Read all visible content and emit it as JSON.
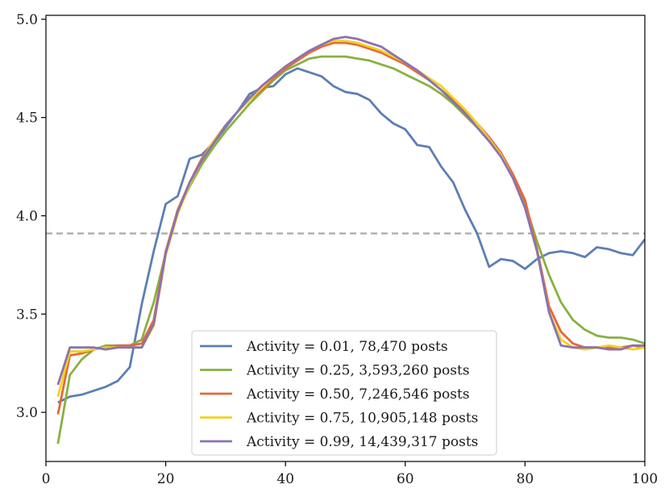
{
  "chart_data": {
    "type": "line",
    "title": "",
    "xlabel": "",
    "ylabel": "",
    "xlim": [
      0,
      100
    ],
    "ylim": [
      2.75,
      5.02
    ],
    "xticks": [
      0,
      20,
      40,
      60,
      80,
      100
    ],
    "yticks": [
      3.0,
      3.5,
      4.0,
      4.5,
      5.0
    ],
    "xtick_labels": [
      "0",
      "20",
      "40",
      "60",
      "80",
      "100"
    ],
    "ytick_labels": [
      "3.0",
      "3.5",
      "4.0",
      "4.5",
      "5.0"
    ],
    "grid": false,
    "legend_position": "bottom-center",
    "reference_line": {
      "y": 3.91,
      "style": "dashed",
      "color": "#aaaaaa"
    },
    "x": [
      2,
      4,
      6,
      8,
      10,
      12,
      14,
      16,
      18,
      20,
      22,
      24,
      26,
      28,
      30,
      32,
      34,
      36,
      38,
      40,
      42,
      44,
      46,
      48,
      50,
      52,
      54,
      56,
      58,
      60,
      62,
      64,
      66,
      68,
      70,
      72,
      74,
      76,
      78,
      80,
      82,
      84,
      86,
      88,
      90,
      92,
      94,
      96,
      98,
      100
    ],
    "series": [
      {
        "name": "Activity = 0.01, 78,470 posts",
        "color": "#5b7fb5",
        "values": [
          3.05,
          3.08,
          3.09,
          3.11,
          3.13,
          3.16,
          3.23,
          3.55,
          3.82,
          4.06,
          4.1,
          4.29,
          4.31,
          4.37,
          4.45,
          4.53,
          4.62,
          4.65,
          4.66,
          4.72,
          4.75,
          4.73,
          4.71,
          4.66,
          4.63,
          4.62,
          4.59,
          4.52,
          4.47,
          4.44,
          4.36,
          4.35,
          4.25,
          4.17,
          4.03,
          3.91,
          3.74,
          3.78,
          3.77,
          3.73,
          3.78,
          3.81,
          3.82,
          3.81,
          3.79,
          3.84,
          3.83,
          3.81,
          3.8,
          3.88
        ]
      },
      {
        "name": "Activity = 0.25, 3,593,260 posts",
        "color": "#88b140",
        "values": [
          2.84,
          3.19,
          3.27,
          3.32,
          3.34,
          3.34,
          3.34,
          3.37,
          3.56,
          3.81,
          4.02,
          4.15,
          4.26,
          4.35,
          4.43,
          4.5,
          4.57,
          4.63,
          4.69,
          4.74,
          4.77,
          4.8,
          4.81,
          4.81,
          4.81,
          4.8,
          4.79,
          4.77,
          4.75,
          4.72,
          4.69,
          4.66,
          4.62,
          4.57,
          4.51,
          4.45,
          4.38,
          4.3,
          4.2,
          4.06,
          3.87,
          3.7,
          3.56,
          3.47,
          3.42,
          3.39,
          3.38,
          3.38,
          3.37,
          3.35
        ]
      },
      {
        "name": "Activity = 0.50, 7,246,546 posts",
        "color": "#e5673a",
        "values": [
          2.99,
          3.29,
          3.3,
          3.32,
          3.33,
          3.34,
          3.34,
          3.35,
          3.47,
          3.82,
          4.03,
          4.17,
          4.29,
          4.38,
          4.46,
          4.53,
          4.59,
          4.64,
          4.7,
          4.75,
          4.79,
          4.83,
          4.86,
          4.88,
          4.88,
          4.87,
          4.85,
          4.83,
          4.8,
          4.77,
          4.73,
          4.69,
          4.64,
          4.59,
          4.53,
          4.47,
          4.4,
          4.32,
          4.21,
          4.08,
          3.83,
          3.54,
          3.41,
          3.35,
          3.33,
          3.33,
          3.33,
          3.33,
          3.34,
          3.33
        ]
      },
      {
        "name": "Activity = 0.75, 10,905,148 posts",
        "color": "#f3d21e",
        "values": [
          3.08,
          3.31,
          3.31,
          3.32,
          3.33,
          3.33,
          3.33,
          3.33,
          3.44,
          3.8,
          4.01,
          4.16,
          4.28,
          4.38,
          4.46,
          4.53,
          4.59,
          4.65,
          4.71,
          4.76,
          4.8,
          4.84,
          4.87,
          4.89,
          4.89,
          4.88,
          4.86,
          4.84,
          4.81,
          4.78,
          4.74,
          4.7,
          4.66,
          4.6,
          4.54,
          4.47,
          4.39,
          4.31,
          4.19,
          4.04,
          3.82,
          3.51,
          3.37,
          3.33,
          3.32,
          3.33,
          3.34,
          3.33,
          3.32,
          3.33
        ]
      },
      {
        "name": "Activity = 0.99, 14,439,317 posts",
        "color": "#8b72b4",
        "values": [
          3.14,
          3.33,
          3.33,
          3.33,
          3.32,
          3.33,
          3.33,
          3.33,
          3.45,
          3.81,
          4.02,
          4.17,
          4.28,
          4.37,
          4.46,
          4.53,
          4.6,
          4.66,
          4.71,
          4.76,
          4.8,
          4.84,
          4.87,
          4.9,
          4.91,
          4.9,
          4.88,
          4.86,
          4.82,
          4.78,
          4.74,
          4.69,
          4.64,
          4.58,
          4.52,
          4.45,
          4.38,
          4.3,
          4.19,
          4.04,
          3.82,
          3.51,
          3.34,
          3.33,
          3.33,
          3.33,
          3.32,
          3.32,
          3.34,
          3.34
        ]
      }
    ]
  }
}
